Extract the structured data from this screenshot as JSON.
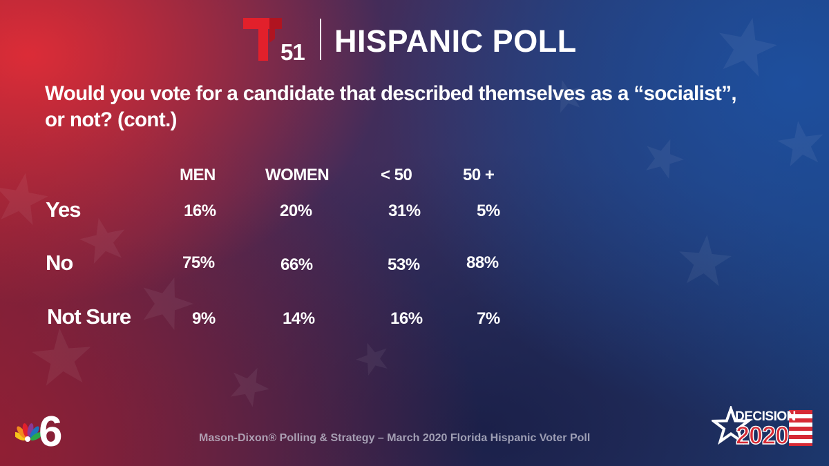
{
  "header": {
    "logo_number": "51",
    "title": "HISPANIC POLL"
  },
  "question": {
    "line1": "Would you vote for a candidate that described themselves as a “socialist”,",
    "line2": "or not? (cont.)"
  },
  "table": {
    "columns": [
      "MEN",
      "WOMEN",
      "< 50",
      "50 +"
    ],
    "rows": [
      {
        "label": "Yes",
        "values": [
          "16%",
          "20%",
          "31%",
          "5%"
        ]
      },
      {
        "label": "No",
        "values": [
          "75%",
          "66%",
          "53%",
          "88%"
        ]
      },
      {
        "label": "Not Sure",
        "values": [
          "9%",
          "14%",
          "16%",
          "7%"
        ]
      }
    ]
  },
  "footer": {
    "source": "Mason-Dixon® Polling & Strategy – March 2020 Florida Hispanic Voter Poll",
    "decision_word": "DECISION",
    "decision_year": "2020",
    "station_number": "6"
  },
  "colors": {
    "brand_red": "#e2202b",
    "decision_red": "#d62a35",
    "text": "#ffffff"
  },
  "icons": [
    "telemundo-t-logo",
    "nbc-peacock-logo",
    "decision-2020-logo",
    "star-pattern-background"
  ]
}
